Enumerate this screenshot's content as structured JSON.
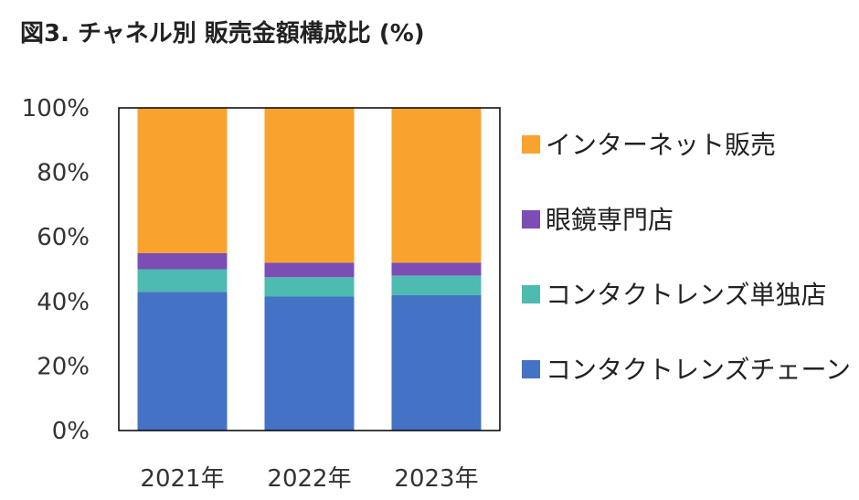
{
  "title": "図3. チャネル別 販売金額構成比 (%)",
  "chart_data": {
    "type": "bar",
    "stacked": true,
    "categories": [
      "2021年",
      "2022年",
      "2023年"
    ],
    "y_ticks": [
      "0%",
      "20%",
      "40%",
      "60%",
      "80%",
      "100%"
    ],
    "ylim": [
      0,
      100
    ],
    "grid": false,
    "legend_position": "right",
    "series": [
      {
        "name": "コンタクトレンズチェーン",
        "color": "#4472C4",
        "values": [
          43,
          41.5,
          42
        ]
      },
      {
        "name": "コンタクトレンズ単独店",
        "color": "#4DBBAF",
        "values": [
          7,
          6,
          6
        ]
      },
      {
        "name": "眼鏡専門店",
        "color": "#7B4DB5",
        "values": [
          5,
          4.5,
          4
        ]
      },
      {
        "name": "インターネット販売",
        "color": "#FAA22E",
        "values": [
          45,
          48,
          48
        ]
      }
    ]
  }
}
